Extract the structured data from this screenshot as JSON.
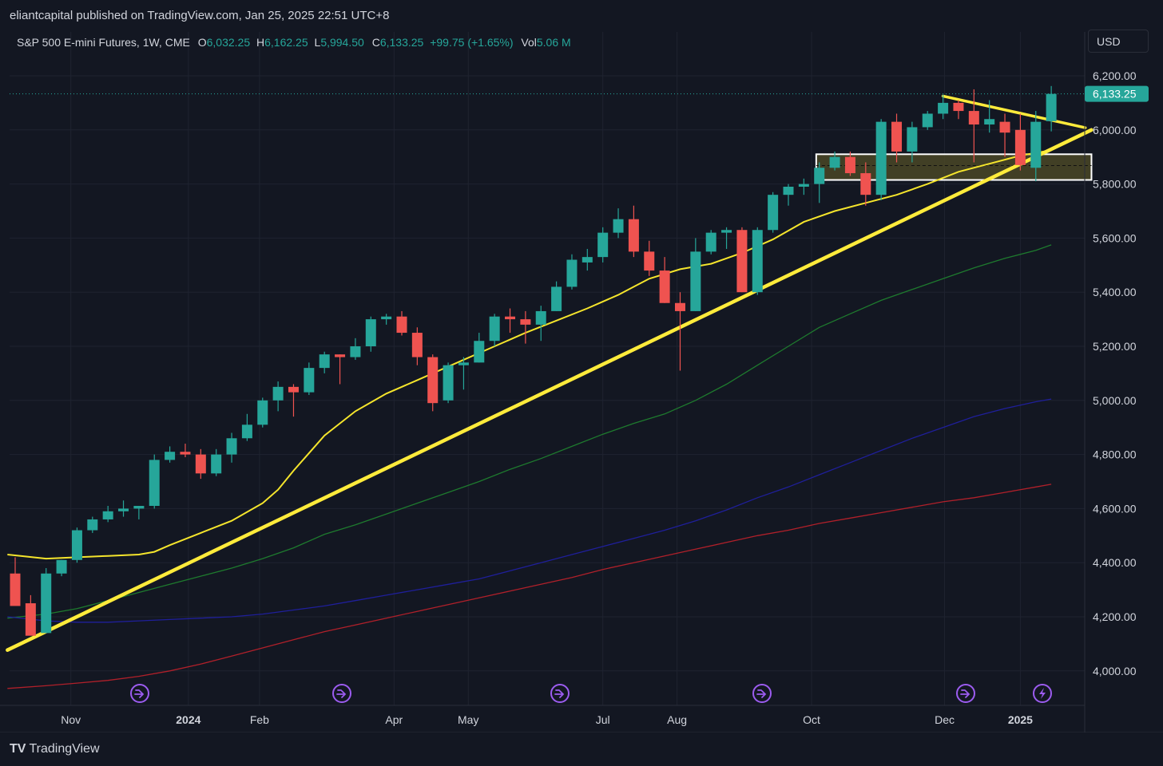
{
  "header": {
    "published": "eliantcapital published on TradingView.com, Jan 25, 2025 22:51 UTC+8"
  },
  "legend": {
    "symbol": "S&P 500 E-mini Futures, 1W, CME",
    "o_label": "O",
    "o_value": "6,032.25",
    "h_label": "H",
    "h_value": "6,162.25",
    "l_label": "L",
    "l_value": "5,994.50",
    "c_label": "C",
    "c_value": "6,133.25",
    "change": "+99.75 (+1.65%)",
    "vol_label": "Vol",
    "vol_value": "5.06 M"
  },
  "currency_button": "USD",
  "price_tag": "6,133.25",
  "footer": {
    "brand": "TradingView"
  },
  "colors": {
    "up": "#26a69a",
    "down": "#ef5350",
    "background": "#131722",
    "grid": "#1f2330",
    "ma_yellow": "#f5e52c",
    "ma_green": "#1e7a2e",
    "ma_blue": "#1f1f9a",
    "ma_red": "#b0202a",
    "trend": "#ffeb3b",
    "zone_fill": "#4a4626",
    "event_icon": "#9c5cf0"
  },
  "event_icons": [
    "trend-arrow-icon",
    "trend-arrow-icon",
    "trend-arrow-icon",
    "trend-arrow-icon",
    "trend-arrow-icon",
    "lightning-icon"
  ],
  "chart_data": {
    "type": "candlestick",
    "symbol": "S&P 500 E-mini Futures",
    "interval": "1W",
    "ylim": [
      3880,
      6270
    ],
    "yticks": [
      "6,200.00",
      "6,000.00",
      "5,800.00",
      "5,600.00",
      "5,400.00",
      "5,200.00",
      "5,000.00",
      "4,800.00",
      "4,600.00",
      "4,400.00",
      "4,200.00",
      "4,000.00"
    ],
    "ytick_values": [
      6200,
      6000,
      5800,
      5600,
      5400,
      5200,
      5000,
      4800,
      4600,
      4400,
      4200,
      4000
    ],
    "xticks": [
      {
        "label": "Nov",
        "week": 3.6,
        "bold": false
      },
      {
        "label": "2024",
        "week": 11.2,
        "bold": true
      },
      {
        "label": "Feb",
        "week": 15.8,
        "bold": false
      },
      {
        "label": "Apr",
        "week": 24.5,
        "bold": false
      },
      {
        "label": "May",
        "week": 29.3,
        "bold": false
      },
      {
        "label": "Jul",
        "week": 38.0,
        "bold": false
      },
      {
        "label": "Aug",
        "week": 42.8,
        "bold": false
      },
      {
        "label": "Oct",
        "week": 51.5,
        "bold": false
      },
      {
        "label": "Dec",
        "week": 60.1,
        "bold": false
      },
      {
        "label": "2025",
        "week": 65.0,
        "bold": true
      }
    ],
    "candles": [
      [
        4360,
        4420,
        4260,
        4240
      ],
      [
        4250,
        4280,
        4140,
        4130
      ],
      [
        4140,
        4380,
        4140,
        4360
      ],
      [
        4360,
        4410,
        4350,
        4410
      ],
      [
        4410,
        4530,
        4400,
        4520
      ],
      [
        4520,
        4570,
        4510,
        4560
      ],
      [
        4560,
        4610,
        4550,
        4590
      ],
      [
        4590,
        4630,
        4570,
        4600
      ],
      [
        4600,
        4610,
        4560,
        4610
      ],
      [
        4610,
        4800,
        4600,
        4780
      ],
      [
        4780,
        4830,
        4770,
        4810
      ],
      [
        4810,
        4840,
        4790,
        4800
      ],
      [
        4800,
        4820,
        4710,
        4730
      ],
      [
        4730,
        4820,
        4720,
        4800
      ],
      [
        4800,
        4880,
        4770,
        4860
      ],
      [
        4860,
        4950,
        4850,
        4910
      ],
      [
        4910,
        5010,
        4900,
        5000
      ],
      [
        5000,
        5070,
        4960,
        5050
      ],
      [
        5050,
        5060,
        4940,
        5030
      ],
      [
        5030,
        5140,
        5020,
        5120
      ],
      [
        5120,
        5180,
        5100,
        5170
      ],
      [
        5170,
        5170,
        5060,
        5160
      ],
      [
        5160,
        5230,
        5150,
        5200
      ],
      [
        5200,
        5310,
        5180,
        5300
      ],
      [
        5300,
        5320,
        5280,
        5310
      ],
      [
        5310,
        5330,
        5240,
        5250
      ],
      [
        5250,
        5270,
        5130,
        5160
      ],
      [
        5160,
        5170,
        4960,
        4990
      ],
      [
        5000,
        5140,
        4990,
        5130
      ],
      [
        5130,
        5160,
        5040,
        5140
      ],
      [
        5140,
        5250,
        5140,
        5220
      ],
      [
        5220,
        5320,
        5200,
        5310
      ],
      [
        5310,
        5340,
        5250,
        5300
      ],
      [
        5300,
        5330,
        5210,
        5280
      ],
      [
        5280,
        5350,
        5220,
        5330
      ],
      [
        5330,
        5440,
        5330,
        5420
      ],
      [
        5420,
        5540,
        5410,
        5520
      ],
      [
        5510,
        5560,
        5480,
        5530
      ],
      [
        5530,
        5640,
        5510,
        5620
      ],
      [
        5620,
        5710,
        5600,
        5670
      ],
      [
        5670,
        5720,
        5530,
        5550
      ],
      [
        5550,
        5590,
        5460,
        5480
      ],
      [
        5480,
        5530,
        5360,
        5360
      ],
      [
        5360,
        5400,
        5110,
        5330
      ],
      [
        5330,
        5600,
        5330,
        5550
      ],
      [
        5550,
        5630,
        5540,
        5620
      ],
      [
        5620,
        5640,
        5560,
        5630
      ],
      [
        5630,
        5640,
        5400,
        5400
      ],
      [
        5400,
        5640,
        5390,
        5630
      ],
      [
        5630,
        5770,
        5620,
        5760
      ],
      [
        5760,
        5800,
        5720,
        5790
      ],
      [
        5790,
        5820,
        5760,
        5800
      ],
      [
        5800,
        5880,
        5730,
        5860
      ],
      [
        5860,
        5920,
        5850,
        5900
      ],
      [
        5900,
        5920,
        5830,
        5840
      ],
      [
        5840,
        5880,
        5720,
        5760
      ],
      [
        5760,
        6040,
        5740,
        6030
      ],
      [
        6030,
        6060,
        5880,
        5920
      ],
      [
        5920,
        6030,
        5880,
        6010
      ],
      [
        6010,
        6070,
        6000,
        6060
      ],
      [
        6060,
        6130,
        6040,
        6100
      ],
      [
        6100,
        6110,
        6040,
        6070
      ],
      [
        6070,
        6150,
        5880,
        6020
      ],
      [
        6020,
        6110,
        5990,
        6040
      ],
      [
        6030,
        6060,
        5900,
        5990
      ],
      [
        6000,
        6060,
        5850,
        5870
      ],
      [
        5860,
        6070,
        5810,
        6030
      ],
      [
        6032.25,
        6162.25,
        5994.5,
        6133.25
      ]
    ],
    "moving_averages": [
      {
        "color": "yellow",
        "values": [
          [
            -0.5,
            4430
          ],
          [
            2,
            4415
          ],
          [
            4,
            4420
          ],
          [
            6,
            4425
          ],
          [
            8,
            4430
          ],
          [
            9,
            4440
          ],
          [
            10,
            4465
          ],
          [
            12,
            4510
          ],
          [
            14,
            4555
          ],
          [
            16,
            4620
          ],
          [
            17,
            4670
          ],
          [
            18,
            4740
          ],
          [
            20,
            4870
          ],
          [
            22,
            4960
          ],
          [
            24,
            5025
          ],
          [
            26,
            5075
          ],
          [
            27,
            5100
          ],
          [
            29,
            5150
          ],
          [
            31,
            5200
          ],
          [
            33,
            5250
          ],
          [
            35,
            5295
          ],
          [
            37,
            5340
          ],
          [
            39,
            5390
          ],
          [
            40,
            5420
          ],
          [
            41,
            5450
          ],
          [
            43,
            5485
          ],
          [
            45,
            5505
          ],
          [
            47,
            5545
          ],
          [
            49,
            5595
          ],
          [
            51,
            5660
          ],
          [
            53,
            5700
          ],
          [
            55,
            5730
          ],
          [
            57,
            5760
          ],
          [
            59,
            5800
          ],
          [
            61,
            5845
          ],
          [
            63,
            5875
          ],
          [
            65,
            5905
          ],
          [
            67,
            5925
          ]
        ]
      },
      {
        "color": "green",
        "values": [
          [
            -0.5,
            4195
          ],
          [
            2,
            4210
          ],
          [
            4,
            4230
          ],
          [
            6,
            4260
          ],
          [
            8,
            4290
          ],
          [
            10,
            4320
          ],
          [
            12,
            4350
          ],
          [
            14,
            4380
          ],
          [
            16,
            4415
          ],
          [
            18,
            4455
          ],
          [
            20,
            4505
          ],
          [
            22,
            4540
          ],
          [
            24,
            4580
          ],
          [
            26,
            4620
          ],
          [
            28,
            4660
          ],
          [
            30,
            4700
          ],
          [
            32,
            4745
          ],
          [
            34,
            4785
          ],
          [
            36,
            4830
          ],
          [
            38,
            4875
          ],
          [
            40,
            4915
          ],
          [
            42,
            4950
          ],
          [
            44,
            5000
          ],
          [
            46,
            5060
          ],
          [
            48,
            5130
          ],
          [
            50,
            5200
          ],
          [
            52,
            5270
          ],
          [
            54,
            5320
          ],
          [
            56,
            5370
          ],
          [
            58,
            5410
          ],
          [
            60,
            5450
          ],
          [
            62,
            5490
          ],
          [
            64,
            5525
          ],
          [
            66,
            5555
          ],
          [
            67,
            5575
          ]
        ]
      },
      {
        "color": "blue",
        "values": [
          [
            -0.5,
            4200
          ],
          [
            2,
            4185
          ],
          [
            4,
            4180
          ],
          [
            6,
            4180
          ],
          [
            8,
            4185
          ],
          [
            10,
            4190
          ],
          [
            12,
            4195
          ],
          [
            14,
            4200
          ],
          [
            16,
            4210
          ],
          [
            18,
            4225
          ],
          [
            20,
            4240
          ],
          [
            22,
            4260
          ],
          [
            24,
            4280
          ],
          [
            26,
            4300
          ],
          [
            28,
            4320
          ],
          [
            30,
            4340
          ],
          [
            32,
            4370
          ],
          [
            34,
            4400
          ],
          [
            36,
            4430
          ],
          [
            38,
            4460
          ],
          [
            40,
            4490
          ],
          [
            42,
            4520
          ],
          [
            44,
            4555
          ],
          [
            46,
            4595
          ],
          [
            48,
            4640
          ],
          [
            50,
            4680
          ],
          [
            52,
            4725
          ],
          [
            54,
            4770
          ],
          [
            56,
            4815
          ],
          [
            58,
            4860
          ],
          [
            60,
            4900
          ],
          [
            62,
            4940
          ],
          [
            64,
            4970
          ],
          [
            66,
            4995
          ],
          [
            67,
            5005
          ]
        ]
      },
      {
        "color": "red",
        "values": [
          [
            -0.5,
            3935
          ],
          [
            2,
            3945
          ],
          [
            4,
            3955
          ],
          [
            6,
            3965
          ],
          [
            8,
            3980
          ],
          [
            10,
            4000
          ],
          [
            12,
            4025
          ],
          [
            14,
            4055
          ],
          [
            16,
            4085
          ],
          [
            18,
            4115
          ],
          [
            20,
            4145
          ],
          [
            22,
            4170
          ],
          [
            24,
            4195
          ],
          [
            26,
            4220
          ],
          [
            28,
            4245
          ],
          [
            30,
            4270
          ],
          [
            32,
            4295
          ],
          [
            34,
            4320
          ],
          [
            36,
            4345
          ],
          [
            38,
            4375
          ],
          [
            40,
            4400
          ],
          [
            42,
            4425
          ],
          [
            44,
            4450
          ],
          [
            46,
            4475
          ],
          [
            48,
            4500
          ],
          [
            50,
            4520
          ],
          [
            52,
            4545
          ],
          [
            54,
            4565
          ],
          [
            56,
            4585
          ],
          [
            58,
            4605
          ],
          [
            60,
            4625
          ],
          [
            62,
            4640
          ],
          [
            64,
            4660
          ],
          [
            66,
            4680
          ],
          [
            67,
            4690
          ]
        ]
      }
    ],
    "trendlines": [
      {
        "name": "rising",
        "from": [
          -0.5,
          4077
        ],
        "to": [
          69.6,
          6000
        ],
        "width": 4.5
      },
      {
        "name": "descending",
        "from": [
          60,
          6125
        ],
        "to": [
          69.2,
          6008
        ],
        "width": 3.5
      }
    ],
    "zone": {
      "week_from": 51.8,
      "week_to": 69.6,
      "high": 5910,
      "low": 5815,
      "mid": 5868
    },
    "last_price": 6133.25
  }
}
